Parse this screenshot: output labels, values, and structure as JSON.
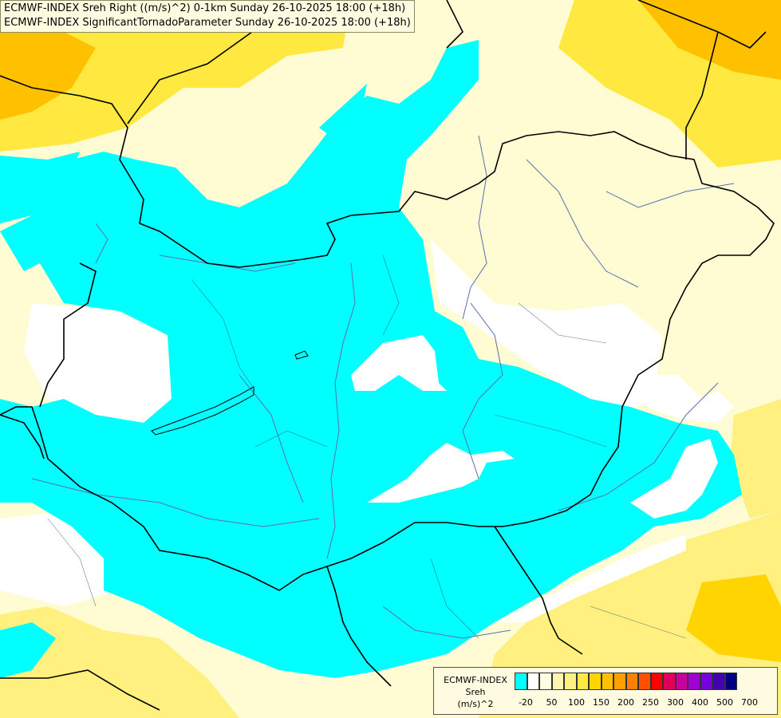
{
  "header": {
    "line1": "ECMWF-INDEX Sreh Right ((m/s)^2) 0-1km Sunday 26-10-2025 18:00 (+18h)",
    "line2": "ECMWF-INDEX SignificantTornadoParameter Sunday 26-10-2025 18:00 (+18h)"
  },
  "legend": {
    "title_line1": "ECMWF-INDEX",
    "title_line2": "Sreh",
    "title_line3": "(m/s)^2",
    "swatch_colors": [
      "#00ffff",
      "#ffffff",
      "#fffde0",
      "#fff5b0",
      "#fff080",
      "#ffe840",
      "#ffd400",
      "#ffc000",
      "#ffa000",
      "#ff8000",
      "#ff5000",
      "#ff0000",
      "#e0005a",
      "#c800a0",
      "#a000d0",
      "#7800e0",
      "#4600b4",
      "#000080"
    ],
    "labels": [
      "-20",
      "50",
      "100",
      "150",
      "200",
      "250",
      "300",
      "400",
      "500",
      "700"
    ]
  },
  "colors": {
    "cyan": "#00ffff",
    "pale_yellow": "#fffbd2",
    "light_yellow": "#fff5a0",
    "yellow": "#ffe840",
    "orange": "#ffc000",
    "border": "#000000",
    "river": "#5a6fb0"
  }
}
